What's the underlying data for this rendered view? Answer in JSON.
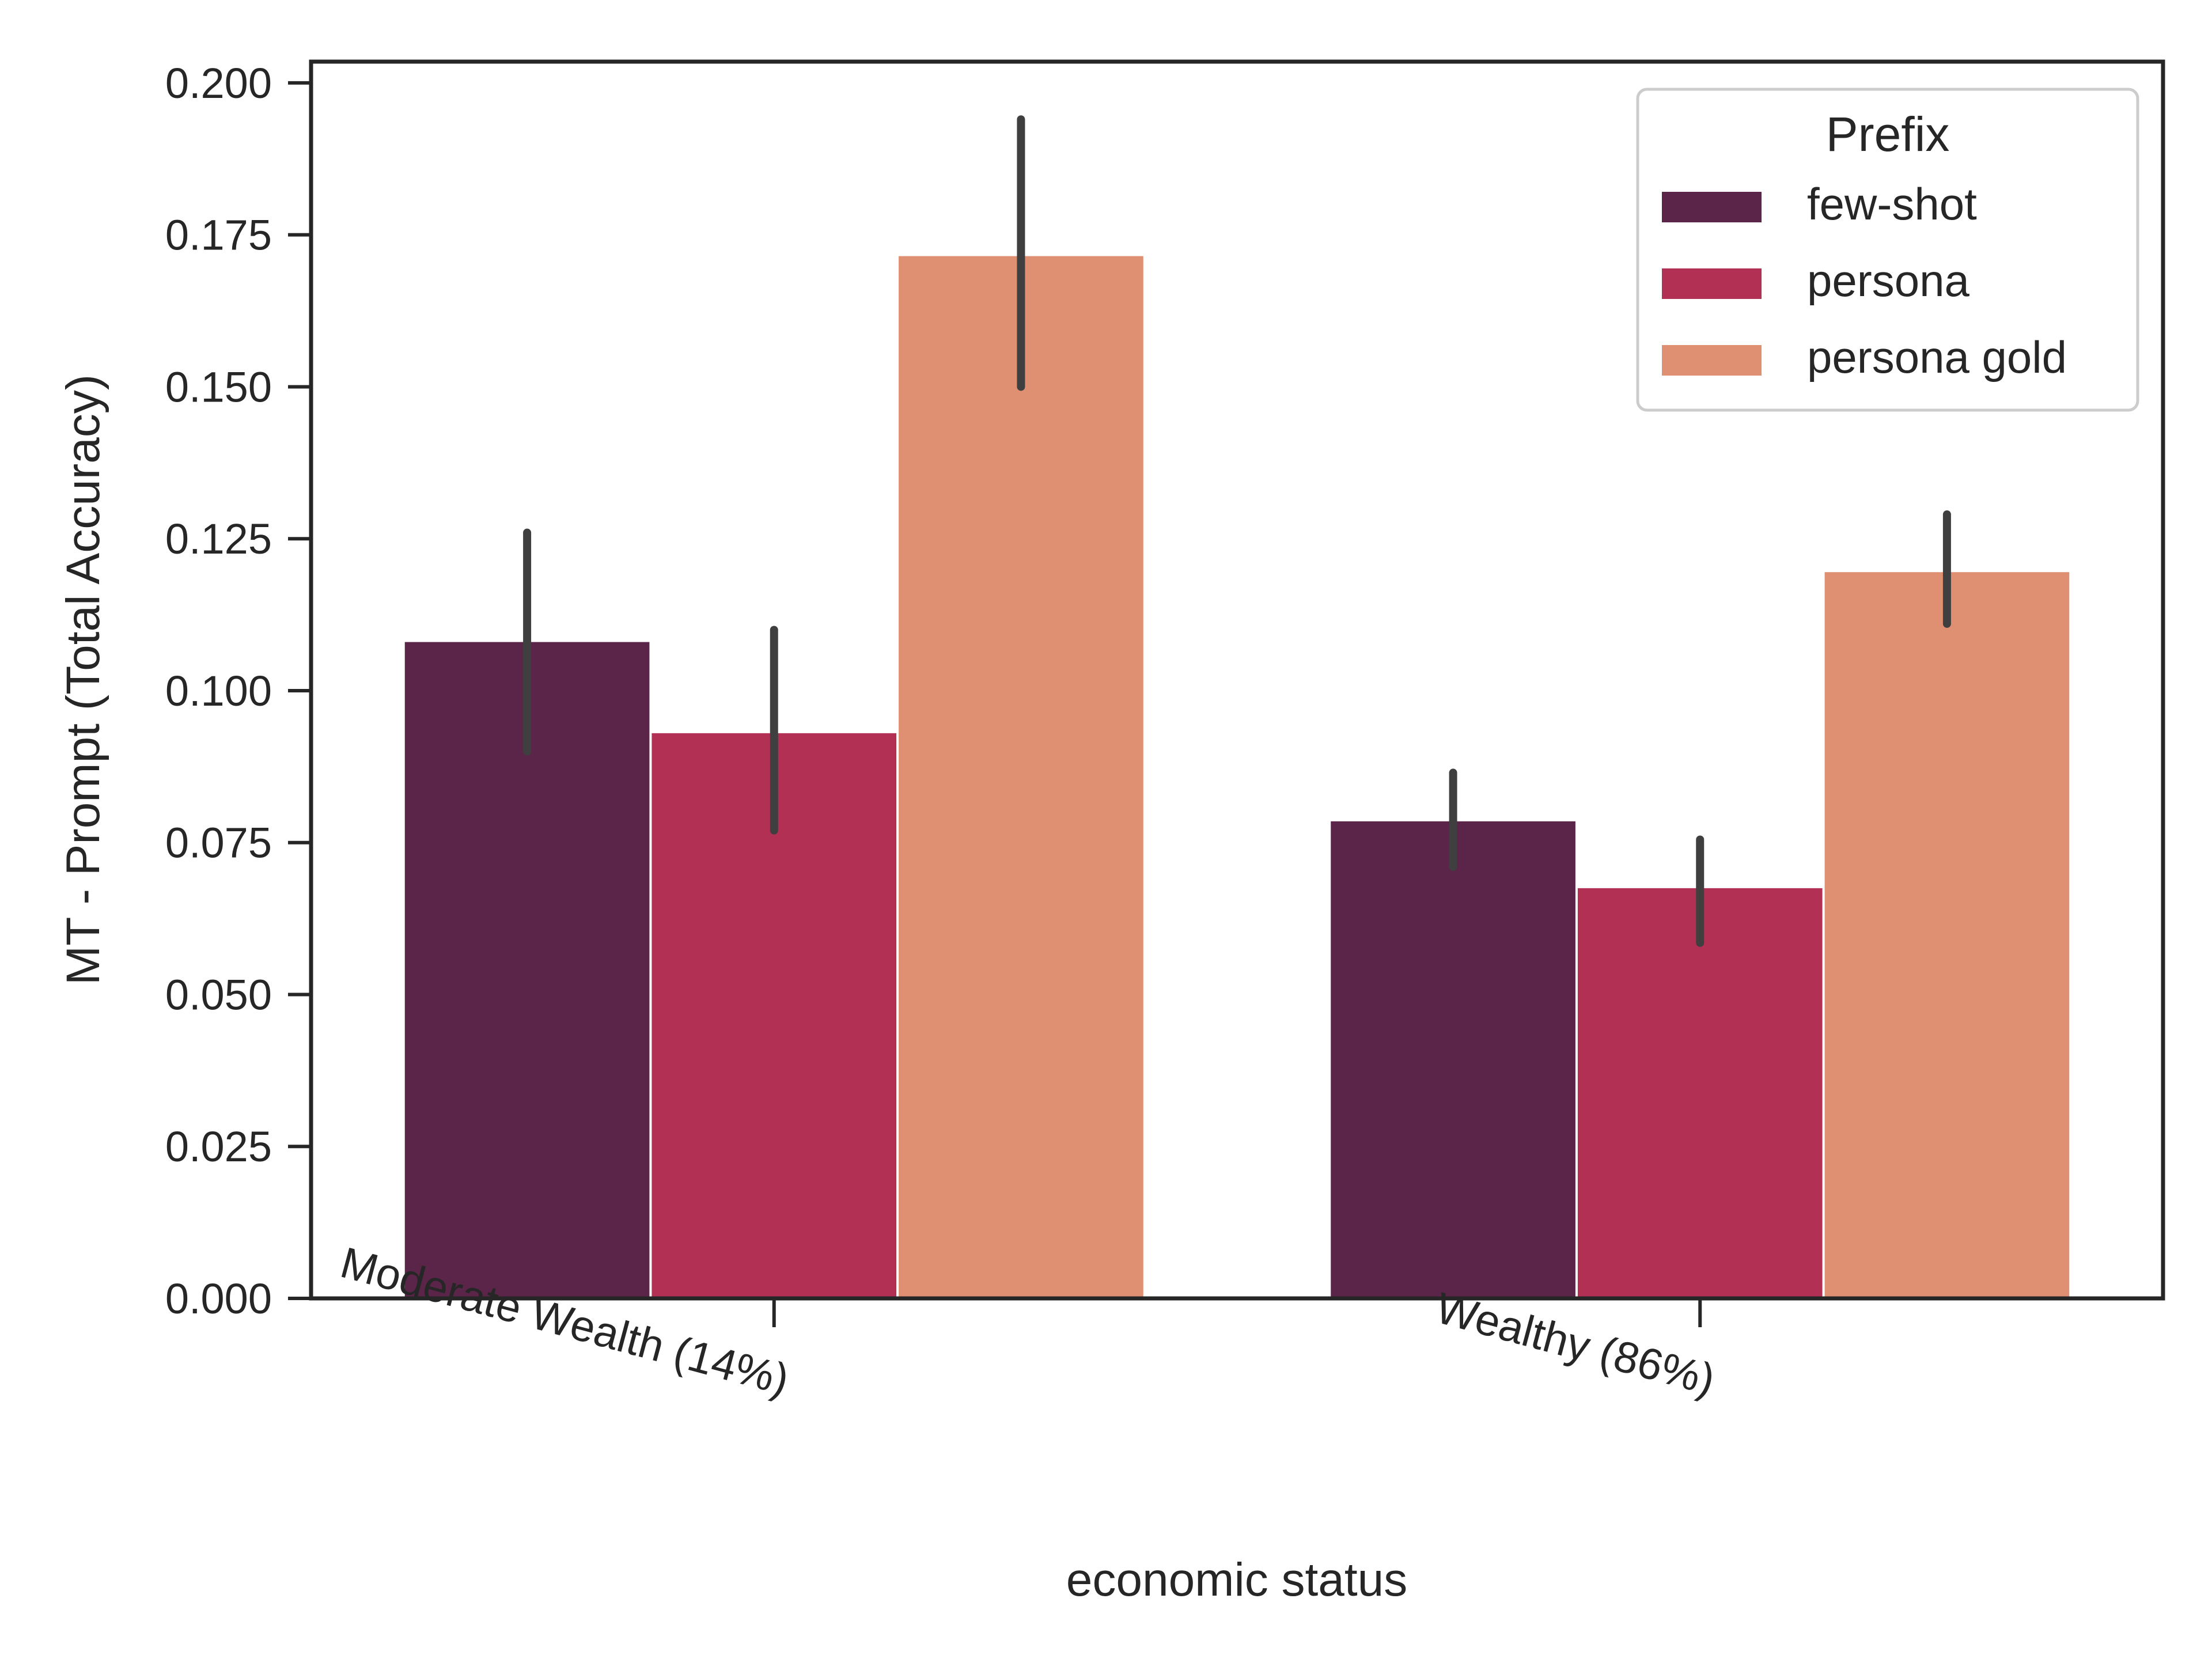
{
  "chart_data": {
    "type": "bar",
    "title": "",
    "xlabel": "economic status",
    "ylabel": "MT - Prompt (Total Accuracy)",
    "categories": [
      "Moderate Wealth (14%)",
      "Wealthy (86%)"
    ],
    "yticks": [
      "0.000",
      "0.025",
      "0.050",
      "0.075",
      "0.100",
      "0.125",
      "0.150",
      "0.175",
      "0.200"
    ],
    "ylim": [
      0,
      0.2035
    ],
    "grid": false,
    "legend": {
      "title": "Prefix",
      "position": "top-right"
    },
    "series": [
      {
        "name": "few-shot",
        "color": "#5b2549",
        "values": [
          0.108,
          0.0785
        ],
        "error_low": [
          0.09,
          0.071
        ],
        "error_high": [
          0.126,
          0.0865
        ]
      },
      {
        "name": "persona",
        "color": "#b33055",
        "values": [
          0.093,
          0.0675
        ],
        "error_low": [
          0.077,
          0.0585
        ],
        "error_high": [
          0.11,
          0.0755
        ]
      },
      {
        "name": "persona gold",
        "color": "#e09072",
        "values": [
          0.1715,
          0.1195
        ],
        "error_low": [
          0.15,
          0.111
        ],
        "error_high": [
          0.194,
          0.129
        ]
      }
    ],
    "error_bar_color": "#3f3f3f"
  }
}
